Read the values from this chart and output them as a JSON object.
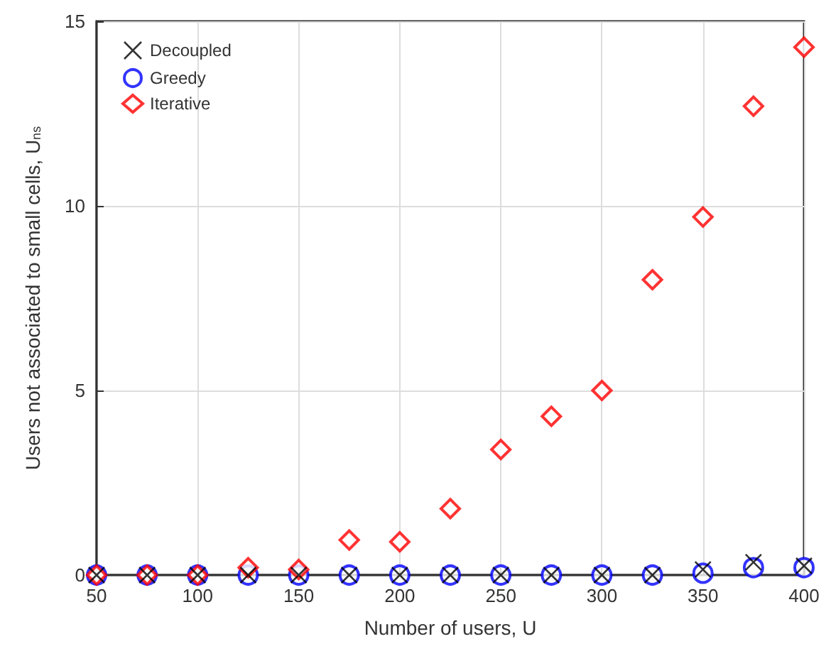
{
  "chart_data": {
    "type": "scatter",
    "xlabel": "Number of users, U",
    "ylabel": "Users not associated to small cells, U$_{ns}$",
    "x": [
      50,
      75,
      100,
      125,
      150,
      175,
      200,
      225,
      250,
      275,
      300,
      325,
      350,
      375,
      400
    ],
    "series": [
      {
        "name": "Decoupled",
        "color": "#000000",
        "marker": "cross",
        "values": [
          0,
          0,
          0,
          0,
          0,
          0,
          0,
          0,
          0,
          0,
          0,
          0,
          0.15,
          0.35,
          0.25
        ]
      },
      {
        "name": "Greedy",
        "color": "#0000ff",
        "marker": "circle",
        "values": [
          0,
          0,
          0,
          0,
          0,
          0,
          0,
          0,
          0,
          0,
          0,
          0,
          0.05,
          0.2,
          0.2
        ]
      },
      {
        "name": "Iterative",
        "color": "#ff0000",
        "marker": "diamond",
        "values": [
          0,
          0,
          0,
          0.2,
          0.15,
          0.95,
          0.9,
          1.8,
          3.4,
          4.3,
          5.0,
          8.0,
          9.7,
          12.7,
          14.3
        ]
      }
    ],
    "xlim": [
      50,
      400
    ],
    "xticks": [
      50,
      100,
      150,
      200,
      250,
      300,
      350,
      400
    ],
    "ylim": [
      0,
      15
    ],
    "yticks": [
      0,
      5,
      10,
      15
    ],
    "grid": true,
    "legend": "top left"
  }
}
